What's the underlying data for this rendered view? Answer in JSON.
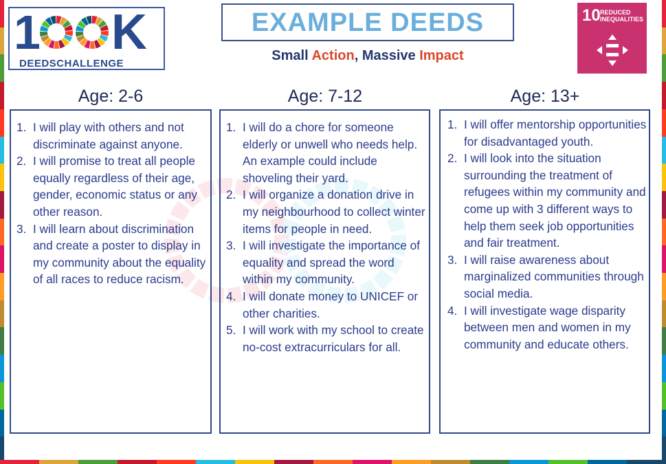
{
  "logo": {
    "big_left": "1",
    "big_right": "K",
    "sub": "DEEDSCHALLENGE",
    "wheel_icon": "sdg-wheel-icon"
  },
  "title": "EXAMPLE DEEDS",
  "tagline": {
    "part1": "Small ",
    "part2": "Action",
    "part3": ", Massive ",
    "part4": "Impact"
  },
  "sdg": {
    "number": "10",
    "label": "REDUCED INEQUALITIES",
    "icon": "reduced-inequalities-icon",
    "color": "#c9316f"
  },
  "columns": [
    {
      "heading": "Age: 2-6",
      "items": [
        {
          "num": "1.",
          "text": "I will play with others and not discriminate against anyone."
        },
        {
          "num": "2.",
          "text": "I will promise to treat all people equally regardless of their age, gender, economic status or any other reason."
        },
        {
          "num": "3.",
          "text": "I will learn about discrimination and create a poster to display in my community about the equality of all races to reduce racism."
        }
      ]
    },
    {
      "heading": "Age: 7-12",
      "items": [
        {
          "num": "1.",
          "text": "I will do a chore for someone elderly or unwell who needs help. An example could include shoveling their yard."
        },
        {
          "num": "2.",
          "text": "I will organize a donation drive in my neighbourhood to collect winter items for people in need."
        },
        {
          "num": "3.",
          "text": "I will investigate the importance of equality and spread the word within my community."
        },
        {
          "num": "4.",
          "text": "I will donate money to UNICEF or other charities."
        },
        {
          "num": "5.",
          "text": "I will work with my school to create no-cost extracurriculars for all."
        }
      ]
    },
    {
      "heading": "Age: 13+",
      "items": [
        {
          "num": "1.",
          "text": "I will offer mentorship opportunities for disadvantaged youth."
        },
        {
          "num": "2.",
          "text": "I will look into the situation surrounding the treatment of refugees within my community and come up with 3 different ways to help them seek job opportunities and fair treatment."
        },
        {
          "num": "3.",
          "text": "I will raise awareness about marginalized communities through social media."
        },
        {
          "num": "4.",
          "text": "I will investigate wage disparity between men and women in my community and educate others."
        }
      ]
    }
  ],
  "colors": {
    "title": "#6aaedc",
    "text": "#2b3c8c",
    "accent_red": "#d9472b",
    "border": "#2e4a8a"
  }
}
